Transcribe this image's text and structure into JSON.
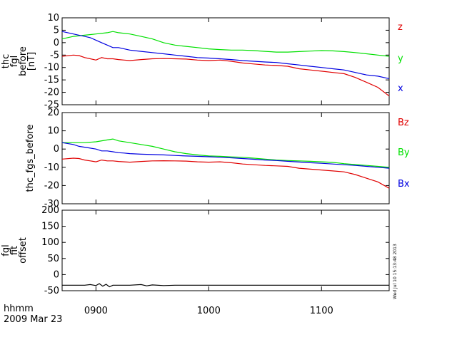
{
  "chart_data": [
    {
      "type": "line",
      "ylabel_lines": [
        "thc",
        "fgl",
        "before",
        "[nT]"
      ],
      "ylim": [
        -25,
        10
      ],
      "yticks": [
        10,
        5,
        0,
        -5,
        -10,
        -15,
        -20,
        -25
      ],
      "xlim": [
        870,
        1160
      ],
      "series": [
        {
          "name": "z",
          "color": "#e00000",
          "x": [
            870,
            880,
            885,
            890,
            895,
            900,
            905,
            910,
            915,
            920,
            925,
            930,
            940,
            950,
            960,
            970,
            980,
            990,
            1000,
            1010,
            1020,
            1030,
            1040,
            1050,
            1060,
            1070,
            1080,
            1090,
            1100,
            1110,
            1120,
            1130,
            1140,
            1150,
            1160
          ],
          "y": [
            -5.5,
            -5,
            -5.2,
            -6,
            -6.5,
            -7,
            -6,
            -6.5,
            -6.5,
            -6.8,
            -7,
            -7.2,
            -6.8,
            -6.5,
            -6.4,
            -6.5,
            -6.6,
            -7,
            -7.2,
            -7,
            -7.5,
            -8.2,
            -8.6,
            -9,
            -9.2,
            -9.5,
            -10.5,
            -11,
            -11.5,
            -12,
            -12.5,
            -14,
            -16,
            -18,
            -21.5
          ]
        },
        {
          "name": "y",
          "color": "#00e000",
          "x": [
            870,
            880,
            890,
            900,
            910,
            915,
            920,
            930,
            940,
            950,
            960,
            970,
            980,
            990,
            1000,
            1010,
            1020,
            1030,
            1040,
            1050,
            1060,
            1070,
            1080,
            1090,
            1100,
            1110,
            1120,
            1130,
            1140,
            1150,
            1160
          ],
          "y": [
            1.5,
            2.5,
            3,
            3.5,
            4,
            4.5,
            4,
            3.5,
            2.5,
            1.5,
            0,
            -1,
            -1.5,
            -2,
            -2.5,
            -2.8,
            -3,
            -3,
            -3.2,
            -3.5,
            -3.8,
            -3.8,
            -3.6,
            -3.4,
            -3.2,
            -3.3,
            -3.6,
            -4,
            -4.5,
            -5,
            -5.5
          ]
        },
        {
          "name": "x",
          "color": "#0000e0",
          "x": [
            870,
            880,
            885,
            890,
            895,
            900,
            905,
            910,
            915,
            920,
            925,
            930,
            940,
            950,
            960,
            970,
            980,
            990,
            1000,
            1010,
            1020,
            1030,
            1040,
            1050,
            1060,
            1070,
            1080,
            1090,
            1100,
            1110,
            1120,
            1130,
            1140,
            1150,
            1160
          ],
          "y": [
            4.5,
            3.5,
            3,
            2.5,
            2,
            1,
            0,
            -1,
            -2,
            -2,
            -2.5,
            -3,
            -3.5,
            -4,
            -4.5,
            -5,
            -5.5,
            -6,
            -6.2,
            -6.5,
            -6.8,
            -7.2,
            -7.5,
            -7.8,
            -8,
            -8.5,
            -9,
            -9.5,
            -10,
            -10.5,
            -11,
            -12,
            -13,
            -13.5,
            -14.5
          ]
        }
      ]
    },
    {
      "type": "line",
      "ylabel_lines": [
        "thc_fgs_before"
      ],
      "ylim": [
        -30,
        20
      ],
      "yticks": [
        20,
        10,
        0,
        -10,
        -20,
        -30
      ],
      "xlim": [
        870,
        1160
      ],
      "series": [
        {
          "name": "Bz",
          "color": "#e00000",
          "x": [
            870,
            880,
            885,
            890,
            895,
            900,
            905,
            910,
            915,
            920,
            925,
            930,
            940,
            950,
            960,
            970,
            980,
            990,
            1000,
            1010,
            1020,
            1030,
            1040,
            1050,
            1060,
            1070,
            1080,
            1090,
            1100,
            1110,
            1120,
            1130,
            1140,
            1150,
            1160
          ],
          "y": [
            -5.5,
            -5,
            -5.2,
            -6,
            -6.5,
            -7,
            -6,
            -6.5,
            -6.5,
            -6.8,
            -7,
            -7.2,
            -6.8,
            -6.5,
            -6.4,
            -6.5,
            -6.6,
            -7,
            -7.2,
            -7,
            -7.5,
            -8.2,
            -8.6,
            -9,
            -9.2,
            -9.5,
            -10.5,
            -11,
            -11.5,
            -12,
            -12.5,
            -14,
            -16,
            -18,
            -21.5
          ]
        },
        {
          "name": "By",
          "color": "#00e000",
          "x": [
            870,
            880,
            890,
            900,
            910,
            915,
            920,
            930,
            940,
            950,
            960,
            970,
            980,
            990,
            1000,
            1010,
            1020,
            1030,
            1040,
            1050,
            1060,
            1070,
            1080,
            1090,
            1100,
            1110,
            1120,
            1130,
            1140,
            1150,
            1160
          ],
          "y": [
            3.5,
            3.5,
            3.5,
            4,
            5,
            5.5,
            4.5,
            3.5,
            2.5,
            1.5,
            0,
            -1.5,
            -2.5,
            -3.2,
            -3.8,
            -4,
            -4.3,
            -4.5,
            -5,
            -5.5,
            -6,
            -6.3,
            -6.5,
            -6.7,
            -7,
            -7.3,
            -8,
            -8.5,
            -9,
            -9.5,
            -10
          ]
        },
        {
          "name": "Bx",
          "color": "#0000e0",
          "x": [
            870,
            880,
            885,
            890,
            895,
            900,
            905,
            910,
            915,
            920,
            925,
            930,
            940,
            950,
            960,
            970,
            980,
            990,
            1000,
            1010,
            1020,
            1030,
            1040,
            1050,
            1060,
            1070,
            1080,
            1090,
            1100,
            1110,
            1120,
            1130,
            1140,
            1150,
            1160
          ],
          "y": [
            3.5,
            2.5,
            1.5,
            1,
            0.5,
            0,
            -1,
            -1,
            -1.5,
            -2,
            -2.2,
            -2.5,
            -2.8,
            -3,
            -3.2,
            -3.5,
            -3.8,
            -4,
            -4.2,
            -4.5,
            -4.8,
            -5.2,
            -5.6,
            -6,
            -6.3,
            -6.7,
            -7.1,
            -7.5,
            -7.8,
            -8.2,
            -8.6,
            -9,
            -9.5,
            -10,
            -10.5
          ]
        }
      ]
    },
    {
      "type": "line",
      "ylabel_lines": [
        "fgl",
        "fit",
        "offset"
      ],
      "ylim": [
        -50,
        200
      ],
      "yticks": [
        200,
        150,
        100,
        50,
        0,
        -50
      ],
      "xlim": [
        870,
        1160
      ],
      "series": [
        {
          "name": "",
          "color": "#000000",
          "x": [
            870,
            880,
            890,
            895,
            900,
            903,
            906,
            909,
            912,
            915,
            920,
            930,
            940,
            945,
            950,
            960,
            970,
            980,
            990,
            1000,
            1010,
            1020,
            1030,
            1040,
            1050,
            1060,
            1070,
            1080,
            1090,
            1100,
            1110,
            1120,
            1130,
            1140,
            1150,
            1160
          ],
          "y": [
            -33,
            -33,
            -33,
            -31,
            -34,
            -28,
            -36,
            -30,
            -38,
            -33,
            -33,
            -33,
            -31,
            -35,
            -32,
            -34,
            -33,
            -33,
            -33,
            -33,
            -33,
            -33,
            -33,
            -33,
            -33,
            -33,
            -33,
            -33,
            -33,
            -33,
            -33,
            -33,
            -33,
            -33,
            -33,
            -33
          ]
        }
      ]
    }
  ],
  "xticks": [
    "0900",
    "1000",
    "1100"
  ],
  "xtick_values": [
    900,
    1000,
    1100
  ],
  "footer": {
    "format_label": "hhmm",
    "date_label": "2009 Mar 23",
    "stamp": "Wed Jul 10 15:13:48 2013"
  }
}
